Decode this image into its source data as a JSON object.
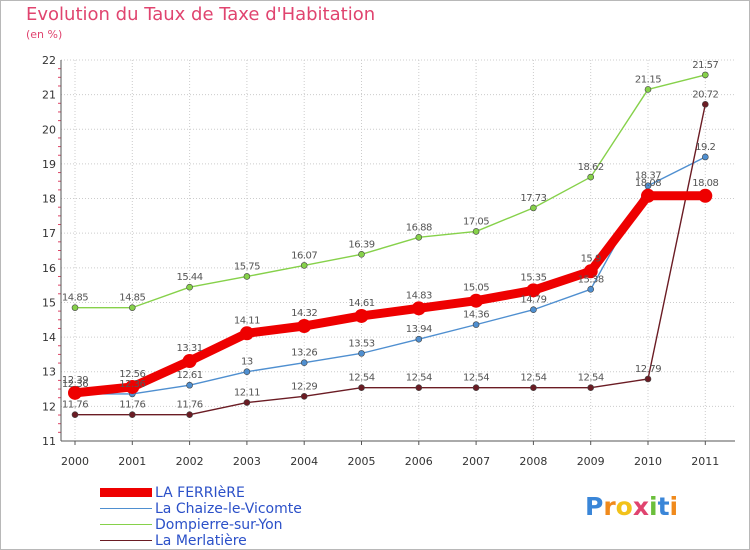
{
  "title": "Evolution du Taux de Taxe d'Habitation",
  "unit": "(en %)",
  "brand": "Proxiti",
  "chart_data": {
    "type": "line",
    "x": [
      "2000",
      "2001",
      "2002",
      "2003",
      "2004",
      "2005",
      "2006",
      "2007",
      "2008",
      "2009",
      "2010",
      "2011"
    ],
    "ylim": [
      11,
      22
    ],
    "yticks": [
      "11",
      "12",
      "13",
      "14",
      "15",
      "16",
      "17",
      "18",
      "19",
      "20",
      "21",
      "22"
    ],
    "series": [
      {
        "name": "Dompierre-sur-Yon",
        "color": "#86d14a",
        "values": [
          14.85,
          14.85,
          15.44,
          15.75,
          16.07,
          16.39,
          16.88,
          17.05,
          17.73,
          18.62,
          21.15,
          21.57
        ],
        "labels": [
          "14.85",
          "14.85",
          "15.44",
          "15.75",
          "16.07",
          "16.39",
          "16.88",
          "17.05",
          "17.73",
          "18.62",
          "21.15",
          "21.57"
        ]
      },
      {
        "name": "La Chaize-le-Vicomte",
        "color": "#4f8fd0",
        "values": [
          12.36,
          12.36,
          12.61,
          13,
          13.26,
          13.53,
          13.94,
          14.36,
          14.79,
          15.38,
          18.37,
          19.2
        ],
        "labels": [
          "12.36",
          "12.36",
          "12.61",
          "13",
          "13.26",
          "13.53",
          "13.94",
          "14.36",
          "14.79",
          "15.38",
          "18.37",
          "19.2"
        ]
      },
      {
        "name": "La Merlatière",
        "color": "#6b1c24",
        "values": [
          11.76,
          11.76,
          11.76,
          12.11,
          12.29,
          12.54,
          12.54,
          12.54,
          12.54,
          12.54,
          12.79,
          20.72
        ],
        "labels": [
          "11.76",
          "11.76",
          "11.76",
          "12.11",
          "12.29",
          "12.54",
          "12.54",
          "12.54",
          "12.54",
          "12.54",
          "12.79",
          "20.72"
        ]
      },
      {
        "name": "LA FERRIèRE",
        "color": "#ee0000",
        "values": [
          12.39,
          12.56,
          13.31,
          14.11,
          14.32,
          14.61,
          14.83,
          15.05,
          15.35,
          15.9,
          18.08,
          18.08
        ],
        "labels": [
          "12.39",
          "12.56",
          "13.31",
          "14.11",
          "14.32",
          "14.61",
          "14.83",
          "15.05",
          "15.35",
          "15.9",
          "18.08",
          "18.08"
        ]
      }
    ],
    "legend": [
      "LA FERRIèRE",
      "La Chaize-le-Vicomte",
      "Dompierre-sur-Yon",
      "La Merlatière"
    ],
    "legend_position": "bottom-left",
    "grid": true
  }
}
